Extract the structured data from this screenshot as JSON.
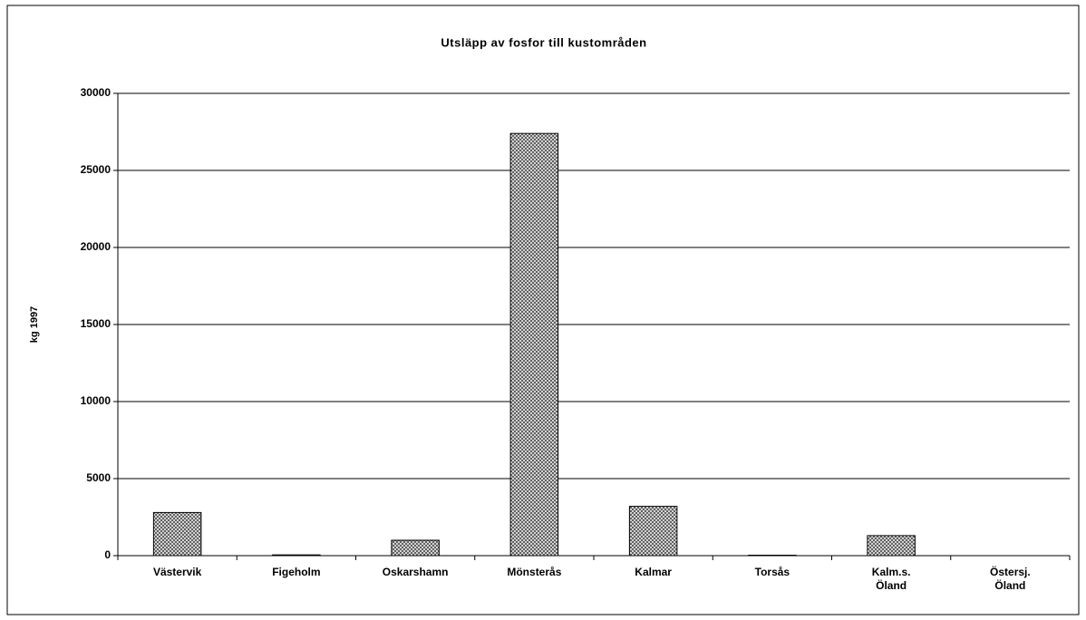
{
  "chart_data": {
    "type": "bar",
    "title": "Utsläpp av fosfor till kustområden",
    "y_label": "kg 1997",
    "categories": [
      "Västervik",
      "Figeholm",
      "Oskarshamn",
      "Mönsterås",
      "Kalmar",
      "Torsås",
      "Kalm.s.\nÖland",
      "Östersj.\nÖland"
    ],
    "values": [
      2800,
      50,
      1000,
      27400,
      3200,
      30,
      1300,
      0
    ],
    "color": "#b8b8b8",
    "ylim": [
      0,
      30000
    ],
    "yticks": [
      0,
      5000,
      10000,
      15000,
      20000,
      25000,
      30000
    ],
    "grid": true
  }
}
